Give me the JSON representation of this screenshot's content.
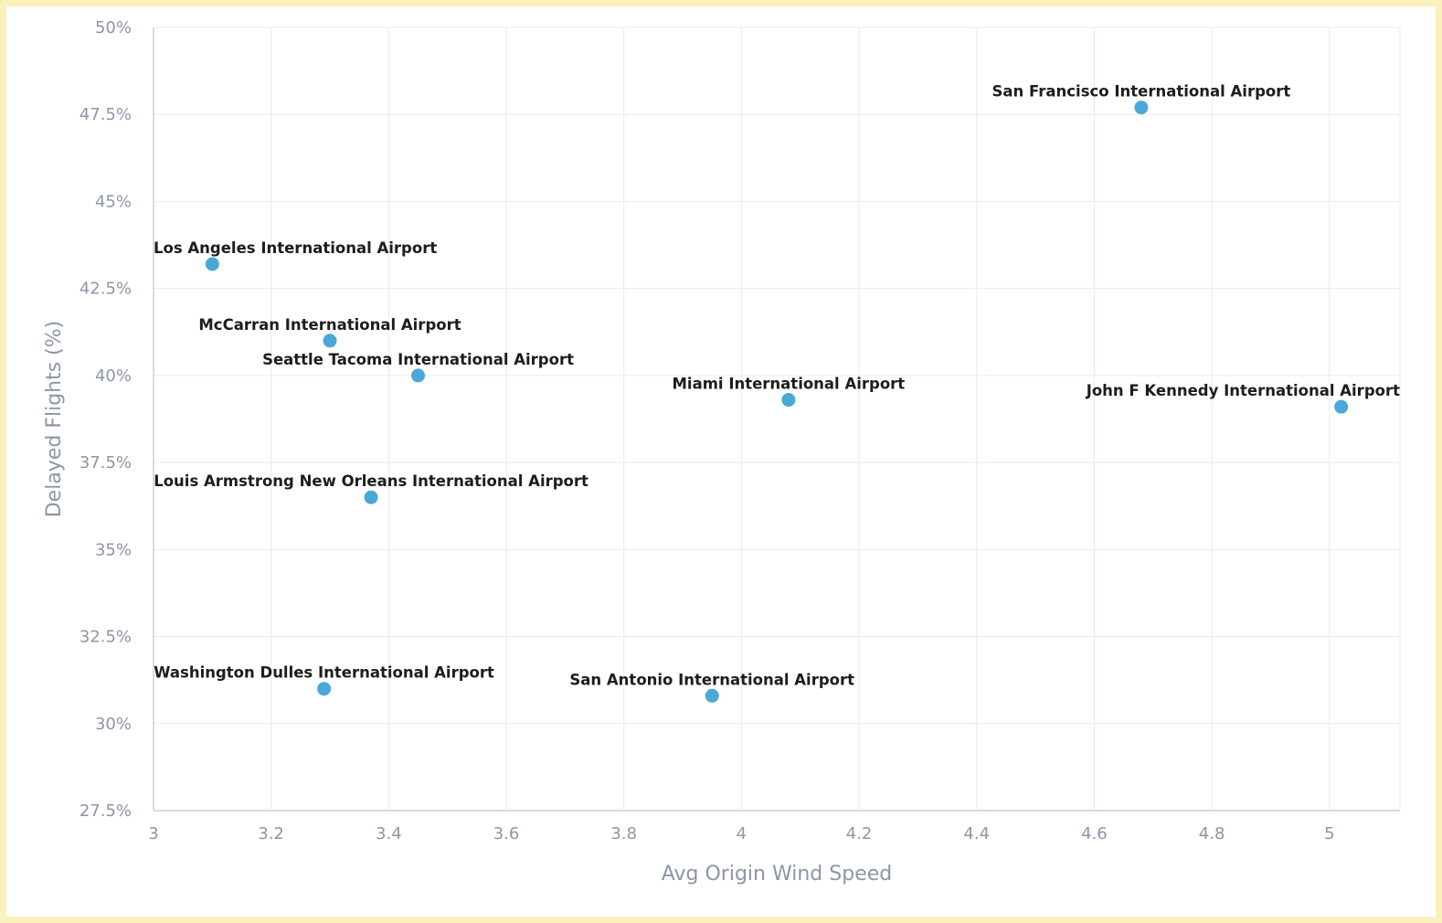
{
  "chart_data": {
    "type": "scatter",
    "title": "",
    "xlabel": "Avg Origin Wind Speed",
    "ylabel": "Delayed Flights (%)",
    "xlim": [
      3,
      5.12
    ],
    "ylim": [
      27.5,
      50
    ],
    "x_ticks": [
      3,
      3.2,
      3.4,
      3.6,
      3.8,
      4,
      4.2,
      4.4,
      4.6,
      4.8,
      5
    ],
    "x_tick_labels": [
      "3",
      "3.2",
      "3.4",
      "3.6",
      "3.8",
      "4",
      "4.2",
      "4.4",
      "4.6",
      "4.8",
      "5"
    ],
    "y_ticks": [
      27.5,
      30,
      32.5,
      35,
      37.5,
      40,
      42.5,
      45,
      47.5,
      50
    ],
    "y_tick_labels": [
      "27.5%",
      "30%",
      "32.5%",
      "35%",
      "37.5%",
      "40%",
      "42.5%",
      "45%",
      "47.5%",
      "50%"
    ],
    "grid": true,
    "point_color": "#4aa8d8",
    "points": [
      {
        "label": "San Francisco International Airport",
        "x": 4.68,
        "y": 47.7
      },
      {
        "label": "Los Angeles International Airport",
        "x": 3.1,
        "y": 43.2
      },
      {
        "label": "McCarran International Airport",
        "x": 3.3,
        "y": 41.0
      },
      {
        "label": "Seattle Tacoma International Airport",
        "x": 3.45,
        "y": 40.0
      },
      {
        "label": "Miami International Airport",
        "x": 4.08,
        "y": 39.3
      },
      {
        "label": "John F Kennedy International Airport",
        "x": 5.02,
        "y": 39.1
      },
      {
        "label": "Louis Armstrong New Orleans International Airport",
        "x": 3.37,
        "y": 36.5
      },
      {
        "label": "Washington Dulles International Airport",
        "x": 3.29,
        "y": 31.0
      },
      {
        "label": "San Antonio International Airport",
        "x": 3.95,
        "y": 30.8
      }
    ]
  }
}
